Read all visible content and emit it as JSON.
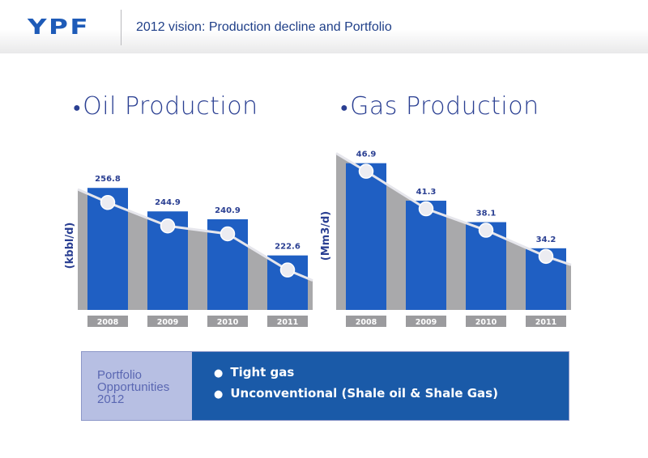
{
  "header": {
    "logo": "YPF",
    "title": "2012 vision: Production decline and Portfolio"
  },
  "colors": {
    "brand_blue": "#1e5bb8",
    "bar_blue": "#1f5fc3",
    "trend_gray": "#a9a9ab",
    "label_navy": "#2a3f92",
    "year_box_gray": "#9b9b9e",
    "portfolio_blue": "#1a5aa8",
    "portfolio_lavender": "#b7bfe3"
  },
  "chart_data": [
    {
      "type": "bar",
      "title": "Oil Production",
      "ylabel": "(kbbl/d)",
      "categories": [
        "2008",
        "2009",
        "2010",
        "2011"
      ],
      "values": [
        256.8,
        244.9,
        240.9,
        222.6
      ],
      "value_labels": [
        "256.8",
        "244.9",
        "240.9",
        "222.6"
      ],
      "trend_line": "gray shaded decline line with white markers",
      "ylim": [
        195,
        270
      ]
    },
    {
      "type": "bar",
      "title": "Gas Production",
      "ylabel": "(Mm3/d)",
      "categories": [
        "2008",
        "2009",
        "2010",
        "2011"
      ],
      "values": [
        46.9,
        41.3,
        38.1,
        34.2
      ],
      "value_labels": [
        "46.9",
        "41.3",
        "38.1",
        "34.2"
      ],
      "trend_line": "gray shaded decline line with white markers",
      "ylim": [
        25,
        50
      ]
    }
  ],
  "portfolio": {
    "label": "Portfolio Opportunities 2012",
    "items": [
      "Tight gas",
      "Unconventional (Shale oil & Shale Gas)"
    ]
  }
}
